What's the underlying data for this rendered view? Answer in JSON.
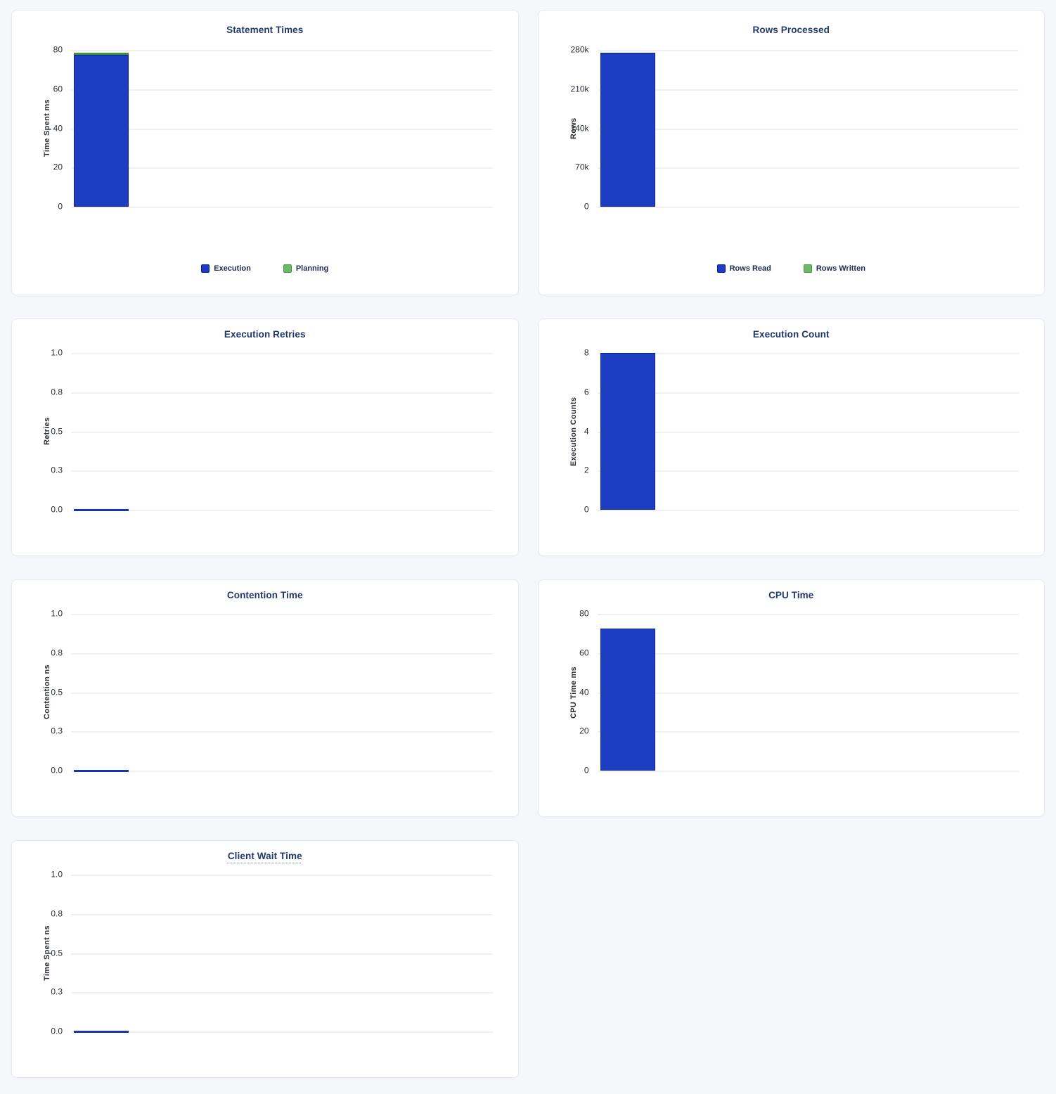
{
  "page": {
    "background_color": "#f5f7fa",
    "card_background": "#ffffff",
    "title_color": "#22386b",
    "gridline_color": "#eef0f3",
    "zero_line_color": "#1b33b0"
  },
  "chart_data": [
    {
      "id": "statement-times",
      "type": "bar",
      "title": "Statement Times",
      "title_underline": false,
      "ylabel": "Time Spent ms",
      "yticks": [
        "80",
        "60",
        "40",
        "20",
        "0"
      ],
      "ymax": 80,
      "ylim": [
        0,
        80
      ],
      "grid": true,
      "legend_position": "bottom",
      "size": "tall",
      "series": [
        {
          "name": "Execution",
          "value": 77.4,
          "color": "#1c3dc0",
          "border": "#10229a"
        },
        {
          "name": "Planning",
          "value": 1.2,
          "color": "#3da23c",
          "border": "#2f8c31"
        }
      ],
      "legend": [
        {
          "label": "Execution",
          "color": "#1c3dc0",
          "border": "#0e1d96"
        },
        {
          "label": "Planning",
          "color": "#6cba68",
          "border": "#3f9a41"
        }
      ]
    },
    {
      "id": "rows-processed",
      "type": "bar",
      "title": "Rows Processed",
      "title_underline": false,
      "ylabel": "Rows",
      "yticks": [
        "280k",
        "210k",
        "140k",
        "70k",
        "0"
      ],
      "ymax": 280000,
      "ylim": [
        0,
        280000
      ],
      "grid": true,
      "legend_position": "bottom",
      "size": "tall",
      "series": [
        {
          "name": "Rows Read",
          "value": 275500,
          "color": "#1c3dc0",
          "border": "#10229a"
        },
        {
          "name": "Rows Written",
          "value": 0,
          "color": "#3da23c",
          "border": "#2f8c31"
        }
      ],
      "legend": [
        {
          "label": "Rows Read",
          "color": "#1c3dc0",
          "border": "#0e1d96"
        },
        {
          "label": "Rows Written",
          "color": "#6cba68",
          "border": "#3f9a41"
        }
      ]
    },
    {
      "id": "execution-retries",
      "type": "bar",
      "title": "Execution Retries",
      "title_underline": false,
      "ylabel": "Retries",
      "yticks": [
        "1.0",
        "0.8",
        "0.5",
        "0.3",
        "0.0"
      ],
      "ymax": 1,
      "ylim": [
        0,
        1
      ],
      "grid": true,
      "legend_position": "none",
      "size": "short",
      "series": [
        {
          "name": "Retries",
          "value": 0,
          "color": "#1c3dc0",
          "border": "#10229a"
        }
      ],
      "legend": null
    },
    {
      "id": "execution-count",
      "type": "bar",
      "title": "Execution Count",
      "title_underline": false,
      "ylabel": "Execution Counts",
      "yticks": [
        "8",
        "6",
        "4",
        "2",
        "0"
      ],
      "ymax": 8,
      "ylim": [
        0,
        8
      ],
      "grid": true,
      "legend_position": "none",
      "size": "short",
      "series": [
        {
          "name": "Execution Count",
          "value": 8,
          "color": "#1c3dc0",
          "border": "#10229a"
        }
      ],
      "legend": null
    },
    {
      "id": "contention-time",
      "type": "bar",
      "title": "Contention Time",
      "title_underline": false,
      "ylabel": "Contention ns",
      "yticks": [
        "1.0",
        "0.8",
        "0.5",
        "0.3",
        "0.0"
      ],
      "ymax": 1,
      "ylim": [
        0,
        1
      ],
      "grid": true,
      "legend_position": "none",
      "size": "short",
      "series": [
        {
          "name": "Contention",
          "value": 0,
          "color": "#1c3dc0",
          "border": "#10229a"
        }
      ],
      "legend": null
    },
    {
      "id": "cpu-time",
      "type": "bar",
      "title": "CPU Time",
      "title_underline": false,
      "ylabel": "CPU Time ms",
      "yticks": [
        "80",
        "60",
        "40",
        "20",
        "0"
      ],
      "ymax": 80,
      "ylim": [
        0,
        80
      ],
      "grid": true,
      "legend_position": "none",
      "size": "short",
      "series": [
        {
          "name": "CPU Time",
          "value": 72.4,
          "color": "#1c3dc0",
          "border": "#10229a"
        }
      ],
      "legend": null
    },
    {
      "id": "client-wait-time",
      "type": "bar",
      "title": "Client Wait Time",
      "title_underline": true,
      "ylabel": "Time Spent ns",
      "yticks": [
        "1.0",
        "0.8",
        "0.5",
        "0.3",
        "0.0"
      ],
      "ymax": 1,
      "ylim": [
        0,
        1
      ],
      "grid": true,
      "legend_position": "none",
      "size": "short",
      "series": [
        {
          "name": "Client Wait",
          "value": 0,
          "color": "#1c3dc0",
          "border": "#10229a"
        }
      ],
      "legend": null
    }
  ]
}
